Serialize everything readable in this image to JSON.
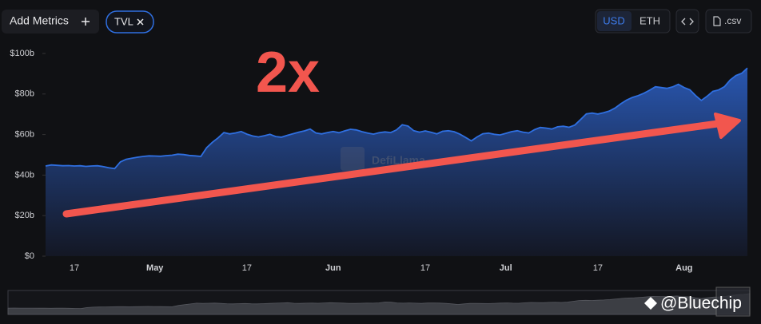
{
  "chart_data": {
    "type": "area",
    "annotation": "2x",
    "watermark": "DefiLlama",
    "categories": [
      null,
      null,
      null,
      null,
      null,
      "17",
      null,
      null,
      null,
      null,
      null,
      null,
      null,
      null,
      null,
      null,
      null,
      null,
      null,
      "May",
      null,
      null,
      null,
      null,
      null,
      null,
      null,
      null,
      null,
      null,
      null,
      null,
      null,
      null,
      null,
      "17",
      null,
      null,
      null,
      null,
      null,
      null,
      null,
      null,
      null,
      null,
      null,
      null,
      null,
      null,
      "Jun",
      null,
      null,
      null,
      null,
      null,
      null,
      null,
      null,
      null,
      null,
      null,
      null,
      null,
      null,
      null,
      "17",
      null,
      null,
      null,
      null,
      null,
      null,
      null,
      null,
      null,
      null,
      null,
      null,
      null,
      "Jul",
      null,
      null,
      null,
      null,
      null,
      null,
      null,
      null,
      null,
      null,
      null,
      null,
      null,
      null,
      null,
      "17",
      null,
      null,
      null,
      null,
      null,
      null,
      null,
      null,
      null,
      null,
      null,
      null,
      null,
      null,
      "Aug",
      null,
      null,
      null,
      null,
      null,
      null,
      null,
      null,
      null,
      null,
      null
    ],
    "series": [
      {
        "name": "TVL",
        "color": "#2f6fe0",
        "values": [
          44.5,
          45,
          44.8,
          44.6,
          44.7,
          44.5,
          44.6,
          44.3,
          44.5,
          44.6,
          44.2,
          43.6,
          43.2,
          46.5,
          47.8,
          48.3,
          48.8,
          49.2,
          49.5,
          49.4,
          49.3,
          49.6,
          49.8,
          50.3,
          50.1,
          49.7,
          49.5,
          49.2,
          53.5,
          56.2,
          58.4,
          61.0,
          60.3,
          60.8,
          61.5,
          60.2,
          59.3,
          58.8,
          59.4,
          60.1,
          59.0,
          58.7,
          59.6,
          60.4,
          61.2,
          61.8,
          62.7,
          60.8,
          60.3,
          61.0,
          61.5,
          60.9,
          61.8,
          62.6,
          62.3,
          61.4,
          60.7,
          60.2,
          60.9,
          61.3,
          61.0,
          62.3,
          64.8,
          64.2,
          61.9,
          61.2,
          61.8,
          61.1,
          60.3,
          61.6,
          61.9,
          61.4,
          60.2,
          58.6,
          56.9,
          58.8,
          60.4,
          60.7,
          60.1,
          59.8,
          60.6,
          61.4,
          61.9,
          61.2,
          60.8,
          62.4,
          63.5,
          63.2,
          62.7,
          63.8,
          64.1,
          63.6,
          64.7,
          67.4,
          70.2,
          70.6,
          70.1,
          70.8,
          71.6,
          73.1,
          75.2,
          77.0,
          78.3,
          79.2,
          80.4,
          81.9,
          83.6,
          83.2,
          82.8,
          83.5,
          84.8,
          83.2,
          82.1,
          79.2,
          76.8,
          78.9,
          81.3,
          82.0,
          83.6,
          86.9,
          89.1,
          90.2,
          92.8
        ]
      }
    ],
    "ylim": [
      0,
      100
    ],
    "yticks": [
      {
        "value": 0,
        "label": "$0"
      },
      {
        "value": 20,
        "label": "$20b"
      },
      {
        "value": 40,
        "label": "$40b"
      },
      {
        "value": 60,
        "label": "$60b"
      },
      {
        "value": 80,
        "label": "$80b"
      },
      {
        "value": 100,
        "label": "$100b"
      }
    ]
  },
  "ui": {
    "add_metrics": "Add Metrics",
    "currencies": [
      "USD",
      "ETH"
    ],
    "csv": ".csv",
    "credit": "@Bluechip"
  }
}
